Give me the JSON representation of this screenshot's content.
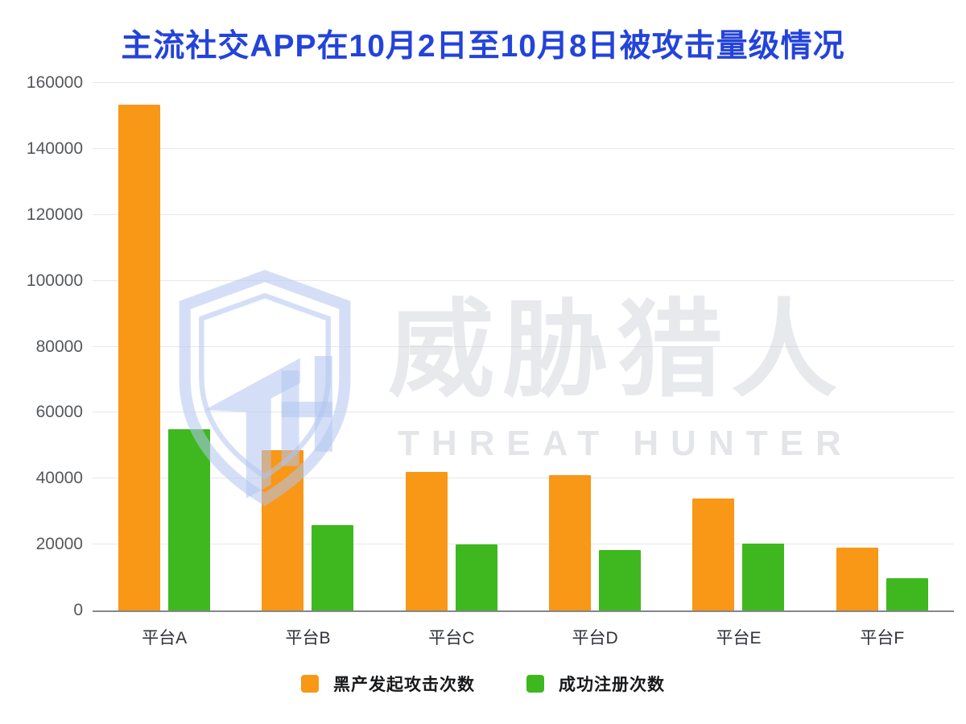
{
  "page": {
    "background": "#ffffff"
  },
  "chart_data": {
    "type": "bar",
    "title": "主流社交APP在10月2日至10月8日被攻击量级情况",
    "title_color": "#2443DB",
    "categories": [
      "平台A",
      "平台B",
      "平台C",
      "平台D",
      "平台E",
      "平台F"
    ],
    "series": [
      {
        "name": "黑产发起攻击次数",
        "color": "#F99716",
        "values": [
          153500,
          48500,
          42000,
          41000,
          34000,
          19000
        ]
      },
      {
        "name": "成功注册次数",
        "color": "#3EB81E",
        "values": [
          55000,
          26000,
          20000,
          18300,
          20200,
          9800
        ]
      }
    ],
    "xlabel": "",
    "ylabel": "",
    "ylim": [
      0,
      160000
    ],
    "yticks": [
      0,
      20000,
      40000,
      60000,
      80000,
      100000,
      120000,
      140000,
      160000
    ],
    "grid": "horizontal",
    "legend_position": "bottom",
    "axis_colors": {
      "gridline": "#e8e8ea",
      "axis_line": "#85868a",
      "tick_text": "#55585c",
      "category_text": "#2f3238"
    }
  },
  "watermark": {
    "cn": "威胁猎人",
    "en": "THREAT HUNTER",
    "logo": "threat-hunter-shield-icon"
  }
}
